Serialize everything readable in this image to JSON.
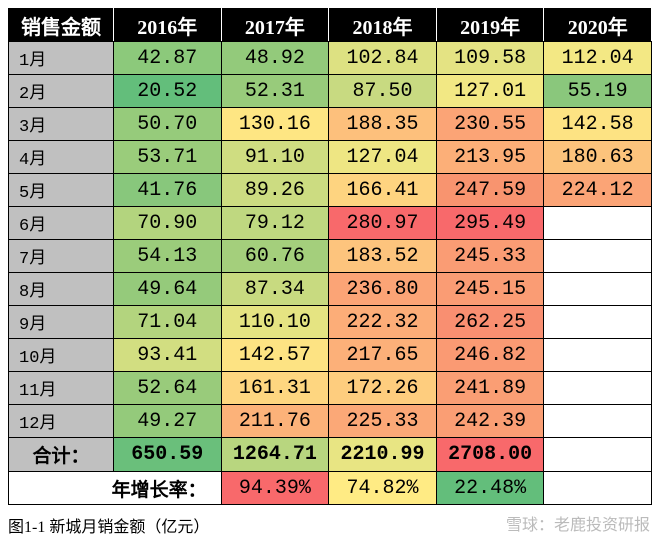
{
  "table": {
    "header": [
      "销售金额",
      "2016年",
      "2017年",
      "2018年",
      "2019年",
      "2020年"
    ],
    "rows": [
      {
        "label": "1月",
        "values": [
          "42.87",
          "48.92",
          "102.84",
          "109.58",
          "112.04"
        ],
        "colors": [
          "#8cc97b",
          "#93ca7b",
          "#dde182",
          "#e4e383",
          "#f3e884"
        ]
      },
      {
        "label": "2月",
        "values": [
          "20.52",
          "52.31",
          "87.50",
          "127.01",
          "55.19"
        ],
        "colors": [
          "#63be7b",
          "#98cb7b",
          "#c8da81",
          "#f2e884",
          "#8ac77c"
        ]
      },
      {
        "label": "3月",
        "values": [
          "50.70",
          "130.16",
          "188.35",
          "230.55",
          "142.58"
        ],
        "colors": [
          "#96cb7b",
          "#fee683",
          "#fdc07c",
          "#fba476",
          "#fde383"
        ]
      },
      {
        "label": "4月",
        "values": [
          "53.71",
          "91.10",
          "127.04",
          "213.95",
          "180.63"
        ],
        "colors": [
          "#9acc7b",
          "#cfdd81",
          "#eee683",
          "#fcaf78",
          "#fcc37c"
        ]
      },
      {
        "label": "5月",
        "values": [
          "41.76",
          "89.26",
          "166.41",
          "247.59",
          "224.12"
        ],
        "colors": [
          "#88c77c",
          "#ccdc81",
          "#fed480",
          "#f8946f",
          "#fba476"
        ]
      },
      {
        "label": "6月",
        "values": [
          "70.90",
          "79.12",
          "280.97",
          "295.49"
        ],
        "colors": [
          "#b3d47e",
          "#bfd880",
          "#f8696b",
          "#f8696b"
        ]
      },
      {
        "label": "7月",
        "values": [
          "54.13",
          "60.76",
          "183.52",
          "245.33"
        ],
        "colors": [
          "#9bcc7b",
          "#a4cf7c",
          "#fdc47d",
          "#fa9c74"
        ]
      },
      {
        "label": "8月",
        "values": [
          "49.64",
          "87.34",
          "236.80",
          "245.15"
        ],
        "colors": [
          "#95ca7b",
          "#c8da80",
          "#fba476",
          "#fa9c74"
        ]
      },
      {
        "label": "9月",
        "values": [
          "71.04",
          "110.10",
          "222.32",
          "262.25"
        ],
        "colors": [
          "#b3d47e",
          "#e5e482",
          "#fcad78",
          "#f98f71"
        ]
      },
      {
        "label": "10月",
        "values": [
          "93.41",
          "142.57",
          "217.65",
          "246.82"
        ],
        "colors": [
          "#d2de81",
          "#fde383",
          "#fcb079",
          "#fa9a73"
        ]
      },
      {
        "label": "11月",
        "values": [
          "52.64",
          "161.31",
          "172.26",
          "241.89"
        ],
        "colors": [
          "#99cb7b",
          "#fed680",
          "#fecd7e",
          "#fa9e74"
        ]
      },
      {
        "label": "12月",
        "values": [
          "49.27",
          "211.76",
          "225.33",
          "242.39"
        ],
        "colors": [
          "#94ca7b",
          "#fcb279",
          "#fba877",
          "#fa9e74"
        ]
      }
    ],
    "total": {
      "label": "合计：",
      "values": [
        "650.59",
        "1264.71",
        "2210.99",
        "2708.00"
      ],
      "colors": [
        "#6abf7b",
        "#b8d67f",
        "#e8e583",
        "#f8696b"
      ]
    },
    "growth": {
      "label": "年增长率：",
      "values": [
        "94.39%",
        "74.82%",
        "22.48%"
      ],
      "colors": [
        "#f8696b",
        "#ffeb84",
        "#63be7b"
      ]
    }
  },
  "caption": "图1-1 新城月销金额（亿元）",
  "watermark": "雪球：老鹿投资研报"
}
